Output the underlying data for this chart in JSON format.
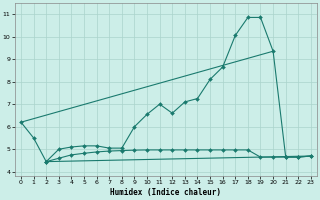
{
  "xlabel": "Humidex (Indice chaleur)",
  "bg_color": "#cceee8",
  "line_color": "#1a7a6e",
  "grid_color": "#aad4cc",
  "xlim": [
    -0.5,
    23.5
  ],
  "ylim": [
    3.8,
    11.5
  ],
  "xticks": [
    0,
    1,
    2,
    3,
    4,
    5,
    6,
    7,
    8,
    9,
    10,
    11,
    12,
    13,
    14,
    15,
    16,
    17,
    18,
    19,
    20,
    21,
    22,
    23
  ],
  "yticks": [
    4,
    5,
    6,
    7,
    8,
    9,
    10,
    11
  ],
  "curve1_x": [
    0,
    1,
    2,
    3,
    4,
    5,
    6,
    7,
    8,
    9,
    10,
    11,
    12,
    13,
    14,
    15,
    16,
    17,
    18,
    19,
    20,
    21,
    22,
    23
  ],
  "curve1_y": [
    6.2,
    5.5,
    4.45,
    5.0,
    5.1,
    5.15,
    5.15,
    5.05,
    5.05,
    6.0,
    6.55,
    7.0,
    6.6,
    7.1,
    7.25,
    8.1,
    8.65,
    10.05,
    10.85,
    10.85,
    9.35,
    4.65,
    4.65,
    4.7
  ],
  "curve3_x": [
    2,
    3,
    4,
    5,
    6,
    7,
    8,
    9,
    10,
    11,
    12,
    13,
    14,
    15,
    16,
    17,
    18,
    19,
    20,
    21,
    22,
    23
  ],
  "curve3_y": [
    4.45,
    4.6,
    4.75,
    4.82,
    4.88,
    4.92,
    4.94,
    4.96,
    4.97,
    4.97,
    4.97,
    4.97,
    4.97,
    4.97,
    4.97,
    4.97,
    4.97,
    4.65,
    4.65,
    4.65,
    4.65,
    4.7
  ],
  "line4_x": [
    2,
    23
  ],
  "line4_y": [
    4.45,
    4.7
  ]
}
